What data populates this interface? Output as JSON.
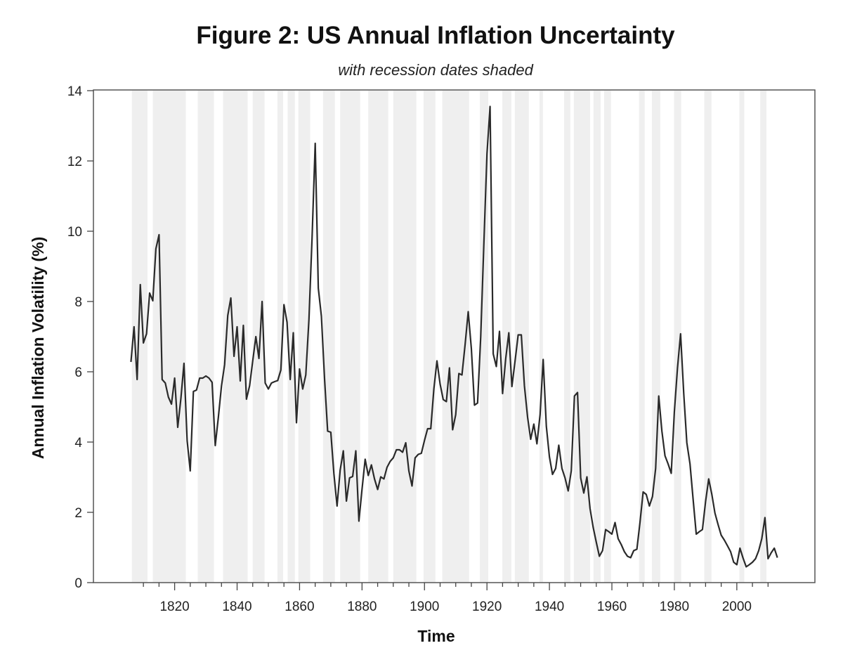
{
  "chart_data": {
    "type": "line",
    "title": "Figure 2: US Annual Inflation Uncertainty",
    "subtitle": "with recession dates shaded",
    "xlabel": "Time",
    "ylabel": "Annual Inflation Volatility (%)",
    "xlim": [
      1794,
      2025
    ],
    "ylim": [
      0,
      14
    ],
    "grid": false,
    "legend": "none",
    "x_major_ticks": [
      1820,
      1840,
      1860,
      1880,
      1900,
      1920,
      1940,
      1960,
      1980,
      2000
    ],
    "x_tick_labels": [
      "1820",
      "1840",
      "1860",
      "1880",
      "1900",
      "1920",
      "1940",
      "1960",
      "1980",
      "2000"
    ],
    "x_minor_ticks": [
      1810,
      1815,
      1825,
      1830,
      1835,
      1845,
      1850,
      1855,
      1865,
      1870,
      1875,
      1885,
      1890,
      1895,
      1905,
      1910,
      1915,
      1925,
      1930,
      1935,
      1945,
      1950,
      1955,
      1965,
      1970,
      1975,
      1985,
      1990,
      1995,
      2005,
      2010
    ],
    "y_ticks": [
      0,
      2,
      4,
      6,
      8,
      10,
      12,
      14
    ],
    "y_tick_labels": [
      "0",
      "2",
      "4",
      "6",
      "8",
      "10",
      "12",
      "14"
    ],
    "recession_shading_color": "#efefef",
    "line_color": "#2a2a2a",
    "recessions": [
      [
        1806.3,
        1811.3
      ],
      [
        1813,
        1823.6
      ],
      [
        1827.4,
        1832.6
      ],
      [
        1835.5,
        1843.4
      ],
      [
        1845,
        1848.8
      ],
      [
        1852.9,
        1854.7
      ],
      [
        1856.2,
        1858.5
      ],
      [
        1859.6,
        1863.4
      ],
      [
        1867.5,
        1871.3
      ],
      [
        1873,
        1879.4
      ],
      [
        1882,
        1888.4
      ],
      [
        1890,
        1897.4
      ],
      [
        1899.7,
        1903.5
      ],
      [
        1905.7,
        1914.3
      ],
      [
        1917.7,
        1920.4
      ],
      [
        1924.9,
        1927.8
      ],
      [
        1928.9,
        1933.4
      ],
      [
        1936.8,
        1937.9
      ],
      [
        1944.7,
        1946.7
      ],
      [
        1947.8,
        1953
      ],
      [
        1954.1,
        1956.4
      ],
      [
        1957.5,
        1959.7
      ],
      [
        1968.7,
        1970.5
      ],
      [
        1972.8,
        1975.5
      ],
      [
        1979.9,
        1982.2
      ],
      [
        1989.6,
        1991.9
      ],
      [
        2000.8,
        2002.4
      ],
      [
        2007.5,
        2009.5
      ]
    ],
    "series": [
      {
        "name": "US annual inflation volatility",
        "x": [
          1806,
          1807,
          1808,
          1809,
          1810,
          1811,
          1812,
          1813,
          1814,
          1815,
          1816,
          1817,
          1818,
          1819,
          1820,
          1821,
          1822,
          1823,
          1824,
          1825,
          1826,
          1827,
          1828,
          1829,
          1830,
          1831,
          1832,
          1833,
          1834,
          1835,
          1836,
          1837,
          1838,
          1839,
          1840,
          1841,
          1842,
          1843,
          1844,
          1845,
          1846,
          1847,
          1848,
          1849,
          1850,
          1851,
          1852,
          1853,
          1854,
          1855,
          1856,
          1857,
          1858,
          1859,
          1860,
          1861,
          1862,
          1863,
          1864,
          1865,
          1866,
          1867,
          1868,
          1869,
          1870,
          1871,
          1872,
          1873,
          1874,
          1875,
          1876,
          1877,
          1878,
          1879,
          1880,
          1881,
          1882,
          1883,
          1884,
          1885,
          1886,
          1887,
          1888,
          1889,
          1890,
          1891,
          1892,
          1893,
          1894,
          1895,
          1896,
          1897,
          1898,
          1899,
          1900,
          1901,
          1902,
          1903,
          1904,
          1905,
          1906,
          1907,
          1908,
          1909,
          1910,
          1911,
          1912,
          1913,
          1914,
          1915,
          1916,
          1917,
          1918,
          1919,
          1920,
          1921,
          1922,
          1923,
          1924,
          1925,
          1926,
          1927,
          1928,
          1929,
          1930,
          1931,
          1932,
          1933,
          1934,
          1935,
          1936,
          1937,
          1938,
          1939,
          1940,
          1941,
          1942,
          1943,
          1944,
          1945,
          1946,
          1947,
          1948,
          1949,
          1950,
          1951,
          1952,
          1953,
          1954,
          1955,
          1956,
          1957,
          1958,
          1959,
          1960,
          1961,
          1962,
          1963,
          1964,
          1965,
          1966,
          1967,
          1968,
          1969,
          1970,
          1971,
          1972,
          1973,
          1974,
          1975,
          1976,
          1977,
          1978,
          1979,
          1980,
          1981,
          1982,
          1983,
          1984,
          1985,
          1986,
          1987,
          1988,
          1989,
          1990,
          1991,
          1992,
          1993,
          1994,
          1995,
          1996,
          1997,
          1998,
          1999,
          2000,
          2001,
          2002,
          2003,
          2004,
          2005,
          2006,
          2007,
          2008,
          2009,
          2010,
          2011,
          2012,
          2013
        ],
        "values": [
          6.28,
          7.28,
          5.78,
          8.48,
          6.82,
          7.08,
          8.24,
          8.02,
          9.5,
          9.9,
          5.78,
          5.68,
          5.28,
          5.08,
          5.82,
          4.42,
          5.24,
          6.24,
          4.04,
          3.18,
          5.44,
          5.48,
          5.82,
          5.82,
          5.88,
          5.82,
          5.7,
          3.9,
          4.7,
          5.6,
          6.2,
          7.6,
          8.1,
          6.44,
          7.28,
          5.74,
          7.32,
          5.22,
          5.6,
          6.3,
          7.0,
          6.38,
          8.0,
          5.68,
          5.51,
          5.68,
          5.72,
          5.75,
          6.05,
          7.91,
          7.41,
          5.78,
          7.11,
          4.55,
          6.08,
          5.51,
          5.91,
          7.5,
          9.8,
          12.5,
          8.38,
          7.58,
          5.8,
          4.31,
          4.28,
          3.1,
          2.18,
          3.2,
          3.75,
          2.32,
          2.98,
          3.02,
          3.75,
          1.75,
          2.65,
          3.51,
          3.05,
          3.35,
          2.95,
          2.65,
          3.01,
          2.95,
          3.28,
          3.45,
          3.55,
          3.78,
          3.78,
          3.71,
          3.98,
          3.18,
          2.75,
          3.55,
          3.65,
          3.68,
          4.05,
          4.38,
          4.38,
          5.51,
          6.31,
          5.65,
          5.21,
          5.15,
          6.11,
          4.35,
          4.78,
          5.95,
          5.91,
          6.78,
          7.71,
          6.65,
          5.05,
          5.11,
          7.0,
          9.6,
          12.2,
          13.55,
          6.51,
          6.15,
          7.15,
          5.38,
          6.38,
          7.11,
          5.58,
          6.31,
          7.05,
          7.05,
          5.6,
          4.71,
          4.08,
          4.51,
          3.95,
          4.78,
          6.35,
          4.45,
          3.58,
          3.08,
          3.25,
          3.91,
          3.25,
          2.98,
          2.61,
          3.18,
          5.31,
          5.41,
          2.98,
          2.55,
          3.01,
          2.11,
          1.58,
          1.15,
          0.75,
          0.91,
          1.51,
          1.45,
          1.38,
          1.71,
          1.25,
          1.08,
          0.88,
          0.75,
          0.71,
          0.91,
          0.95,
          1.71,
          2.58,
          2.51,
          2.18,
          2.45,
          3.25,
          5.31,
          4.31,
          3.61,
          3.38,
          3.11,
          4.85,
          6.11,
          7.08,
          5.38,
          3.98,
          3.38,
          2.38,
          1.38,
          1.45,
          1.51,
          2.31,
          2.95,
          2.51,
          1.98,
          1.65,
          1.35,
          1.21,
          1.05,
          0.88,
          0.58,
          0.51,
          0.98,
          0.7,
          0.45,
          0.51,
          0.58,
          0.68,
          0.91,
          1.25,
          1.85,
          0.68,
          0.85,
          0.98,
          0.71
        ]
      }
    ]
  }
}
